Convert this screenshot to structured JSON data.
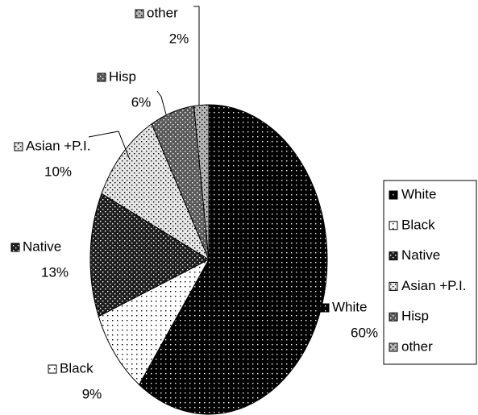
{
  "chart_data": {
    "type": "pie",
    "categories": [
      "White",
      "Black",
      "Native",
      "Asian +P.I.",
      "Hisp",
      "other"
    ],
    "values": [
      60,
      9,
      13,
      10,
      6,
      2
    ],
    "value_labels": [
      "60%",
      "9%",
      "13%",
      "10%",
      "6%",
      "2%"
    ],
    "colors": [
      "#000000",
      "#ffffff",
      "#1e1e1e",
      "#e6e6e6",
      "#5a5a5a",
      "#b4b4b4"
    ],
    "legend": "right"
  }
}
